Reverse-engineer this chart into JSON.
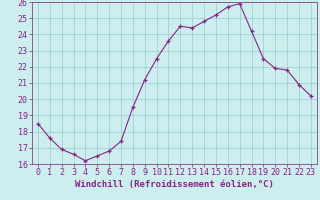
{
  "x": [
    0,
    1,
    2,
    3,
    4,
    5,
    6,
    7,
    8,
    9,
    10,
    11,
    12,
    13,
    14,
    15,
    16,
    17,
    18,
    19,
    20,
    21,
    22,
    23
  ],
  "y": [
    18.5,
    17.6,
    16.9,
    16.6,
    16.2,
    16.5,
    16.8,
    17.4,
    19.5,
    21.2,
    22.5,
    23.6,
    24.5,
    24.4,
    24.8,
    25.2,
    25.7,
    25.9,
    24.2,
    22.5,
    21.9,
    21.8,
    20.9,
    20.2
  ],
  "line_color": "#882288",
  "marker": "+",
  "bg_color": "#cceeee",
  "grid_color": "#99cccc",
  "spine_color": "#884488",
  "xlabel": "Windchill (Refroidissement éolien,°C)",
  "ylim": [
    16,
    26
  ],
  "yticks": [
    16,
    17,
    18,
    19,
    20,
    21,
    22,
    23,
    24,
    25,
    26
  ],
  "xticks": [
    0,
    1,
    2,
    3,
    4,
    5,
    6,
    7,
    8,
    9,
    10,
    11,
    12,
    13,
    14,
    15,
    16,
    17,
    18,
    19,
    20,
    21,
    22,
    23
  ],
  "tick_label_color": "#882288",
  "label_fontsize": 6.5,
  "tick_fontsize": 6.0
}
